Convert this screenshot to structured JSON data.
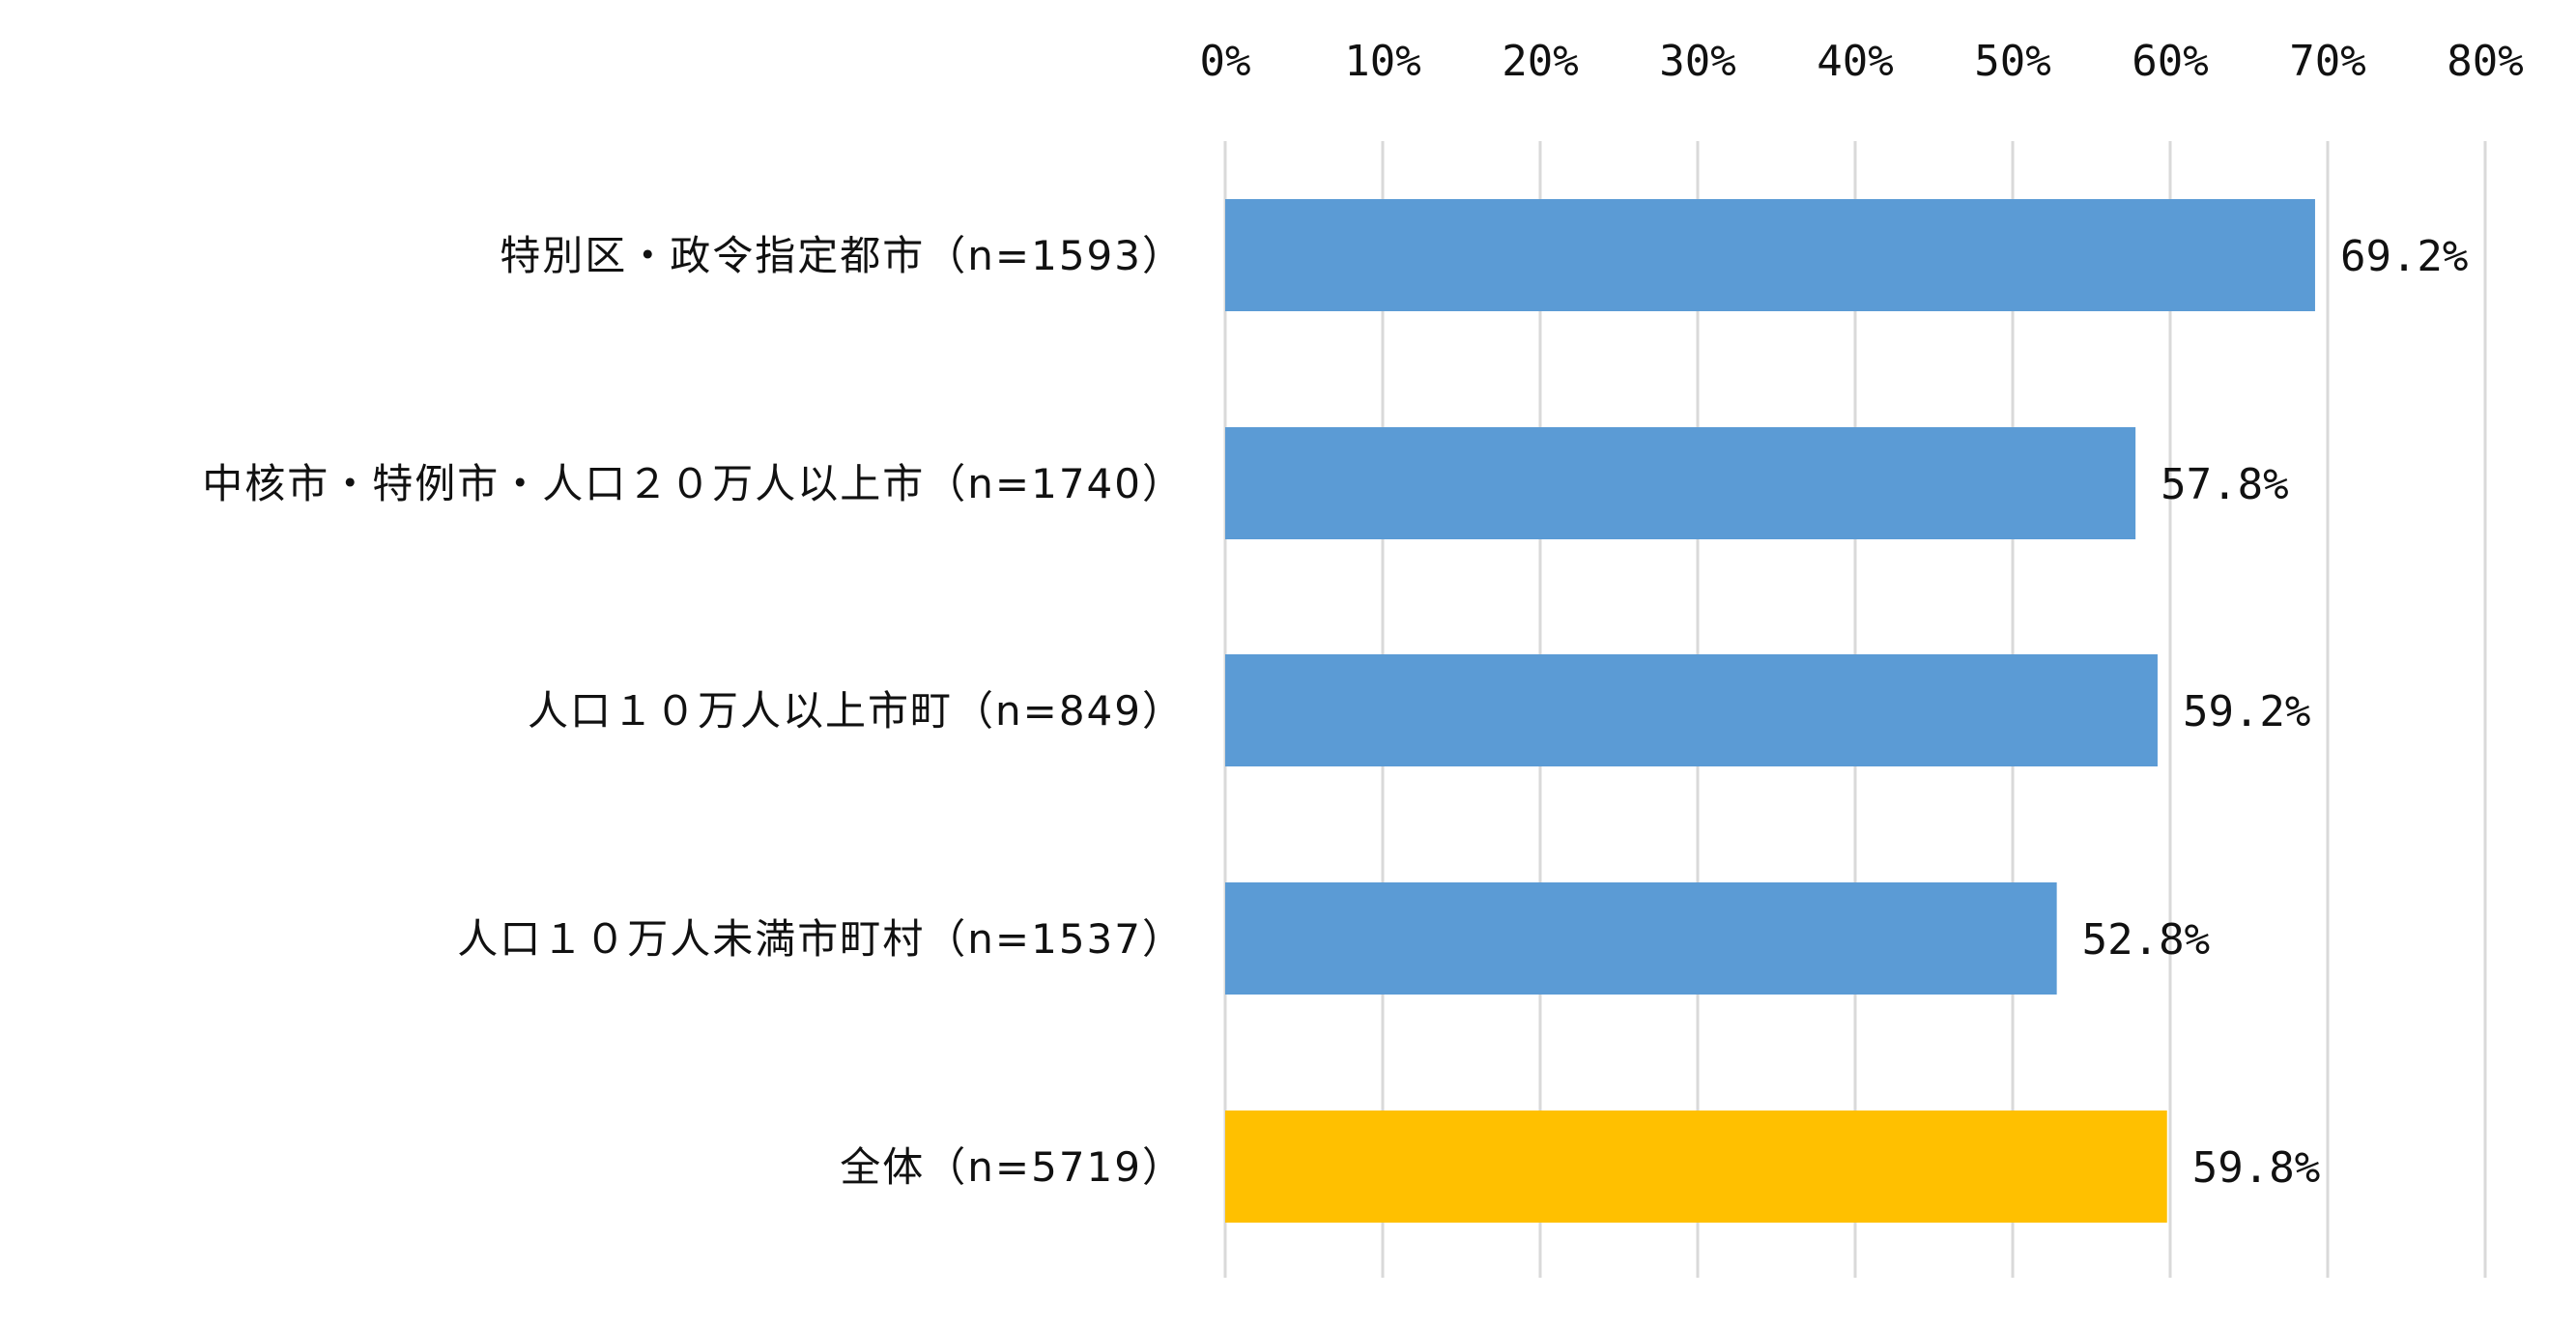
{
  "chart_data": {
    "type": "bar",
    "orientation": "horizontal",
    "title": "",
    "xlabel": "",
    "ylabel": "",
    "xlim": [
      0,
      80
    ],
    "x_ticks": [
      "0%",
      "10%",
      "20%",
      "30%",
      "40%",
      "50%",
      "60%",
      "70%",
      "80%"
    ],
    "x_axis_position": "top",
    "grid": "vertical",
    "legend": "none",
    "categories": [
      "特別区・政令指定都市（n=1593）",
      "中核市・特例市・人口２０万人以上市（n=1740）",
      "人口１０万人以上市町（n=849）",
      "人口１０万人未満市町村（n=1537）",
      "全体（n=5719）"
    ],
    "values": [
      69.2,
      57.8,
      59.2,
      52.8,
      59.8
    ],
    "value_labels": [
      "69.2%",
      "57.8%",
      "59.2%",
      "52.8%",
      "59.8%"
    ],
    "bar_colors": [
      "#5b9bd5",
      "#5b9bd5",
      "#5b9bd5",
      "#5b9bd5",
      "#ffc000"
    ]
  }
}
